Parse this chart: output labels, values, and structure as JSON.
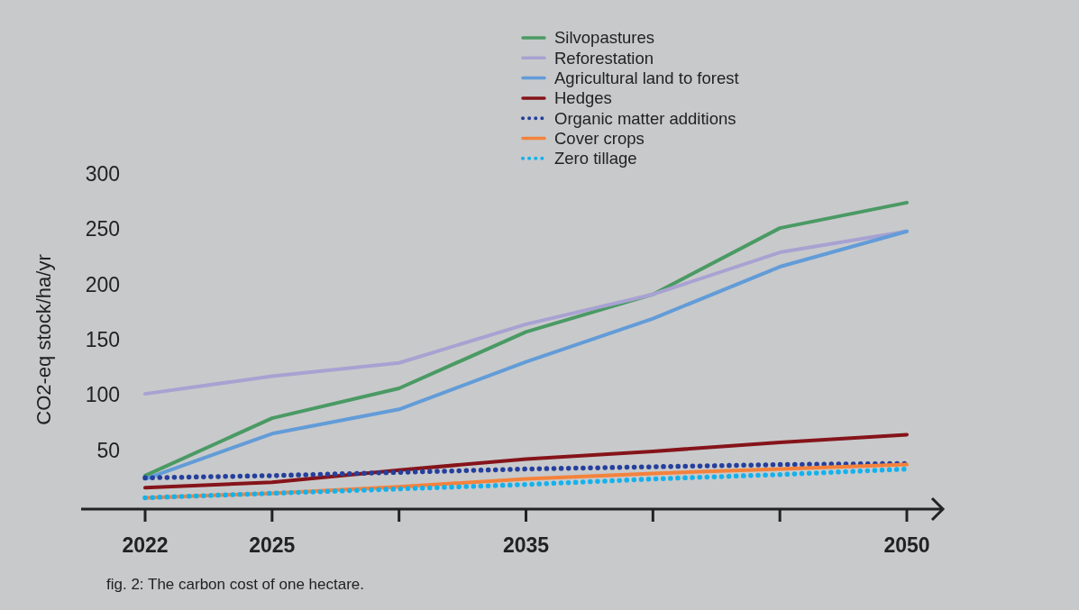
{
  "chart_data": {
    "type": "line",
    "ylabel": "CO2-eq stock/ha/yr",
    "categories": [
      "2022",
      "2025",
      null,
      "2035",
      null,
      null,
      "2050"
    ],
    "ylim": [
      0,
      300
    ],
    "yticks": [
      50,
      100,
      150,
      200,
      250,
      300
    ],
    "grid": false,
    "legend": "top",
    "marker": "none",
    "annotations": [
      "fig. 2: The carbon cost of one hectare."
    ],
    "series": [
      {
        "name": "Silvopastures",
        "color": "#4a9a64",
        "line_style": "solid",
        "values": [
          27,
          79,
          106,
          157,
          191,
          251,
          274
        ]
      },
      {
        "name": "Reforestation",
        "color": "#a8a2d2",
        "line_style": "solid",
        "values": [
          101,
          117,
          129,
          164,
          191,
          229,
          248
        ]
      },
      {
        "name": "Agricultural land to forest",
        "color": "#629cd8",
        "line_style": "solid",
        "values": [
          24,
          65,
          87,
          130,
          169,
          216,
          248
        ]
      },
      {
        "name": "Hedges",
        "color": "#85141a",
        "line_style": "solid",
        "values": [
          16,
          21,
          32,
          42,
          49,
          57,
          64
        ]
      },
      {
        "name": "Organic matter additions",
        "color": "#253f9c",
        "line_style": "dotted",
        "values": [
          25,
          27,
          30,
          33,
          35,
          37,
          38
        ]
      },
      {
        "name": "Cover crops",
        "color": "#f4823c",
        "line_style": "solid",
        "values": [
          7,
          11,
          17,
          24,
          29,
          33,
          37
        ]
      },
      {
        "name": "Zero tillage",
        "color": "#14b2ec",
        "line_style": "dotted",
        "values": [
          7,
          11,
          15,
          19,
          24,
          28,
          33
        ]
      }
    ]
  }
}
